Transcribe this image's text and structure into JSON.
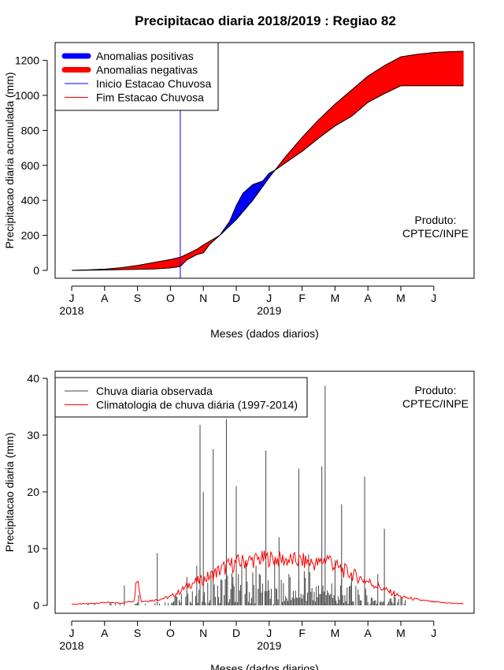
{
  "page_title": "Precipitacao diaria 2018/2019 : Regiao 82",
  "chart_data": [
    {
      "type": "area",
      "xlabel": "Meses (dados diarios)",
      "ylabel": "Precipitacao diaria acumulada (mm)",
      "ylim": [
        0,
        1250
      ],
      "yticks": [
        0,
        200,
        400,
        600,
        800,
        1000,
        1200
      ],
      "x_months": [
        "J",
        "A",
        "S",
        "O",
        "N",
        "D",
        "J",
        "F",
        "M",
        "A",
        "M",
        "J"
      ],
      "x_years": [
        {
          "label": "2018",
          "at_month": 0
        },
        {
          "label": "2019",
          "at_month": 6
        }
      ],
      "grid": false,
      "legend_position": "top-left",
      "legend": [
        {
          "label": "Anomalias positivas",
          "color": "#0000ff",
          "style": "thick"
        },
        {
          "label": "Anomalias negativas",
          "color": "#ff0000",
          "style": "thick"
        },
        {
          "label": "Inicio Estacao Chuvosa",
          "color": "#0000ff",
          "style": "thin"
        },
        {
          "label": "Fim Estacao Chuvosa",
          "color": "#ff0000",
          "style": "thin"
        }
      ],
      "annotation": [
        "Produto:",
        "CPTEC/INPE"
      ],
      "rainy_season_start_month": 3.3,
      "observed_cumulative": [
        [
          0,
          0
        ],
        [
          0.5,
          1
        ],
        [
          1,
          2
        ],
        [
          1.5,
          4
        ],
        [
          2,
          6
        ],
        [
          2.5,
          8
        ],
        [
          3,
          14
        ],
        [
          3.3,
          22
        ],
        [
          3.5,
          60
        ],
        [
          3.8,
          90
        ],
        [
          4,
          100
        ],
        [
          4.2,
          150
        ],
        [
          4.5,
          200
        ],
        [
          4.8,
          280
        ],
        [
          5,
          370
        ],
        [
          5.2,
          440
        ],
        [
          5.5,
          490
        ],
        [
          5.8,
          510
        ],
        [
          6,
          555
        ],
        [
          6.2,
          575
        ],
        [
          6.5,
          615
        ],
        [
          7,
          680
        ],
        [
          7.5,
          755
        ],
        [
          8,
          825
        ],
        [
          8.5,
          880
        ],
        [
          9,
          960
        ],
        [
          9.5,
          1010
        ],
        [
          10,
          1055
        ],
        [
          10.5,
          1055
        ],
        [
          11,
          1055
        ],
        [
          11.5,
          1055
        ],
        [
          11.9,
          1055
        ]
      ],
      "climatology_cumulative": [
        [
          0,
          0
        ],
        [
          0.5,
          3
        ],
        [
          1,
          7
        ],
        [
          1.5,
          15
        ],
        [
          2,
          28
        ],
        [
          2.5,
          45
        ],
        [
          3,
          62
        ],
        [
          3.3,
          75
        ],
        [
          3.5,
          92
        ],
        [
          3.8,
          120
        ],
        [
          4,
          145
        ],
        [
          4.5,
          200
        ],
        [
          5,
          290
        ],
        [
          5.5,
          400
        ],
        [
          6,
          530
        ],
        [
          6.5,
          650
        ],
        [
          7,
          760
        ],
        [
          7.5,
          860
        ],
        [
          8,
          950
        ],
        [
          8.5,
          1030
        ],
        [
          9,
          1110
        ],
        [
          9.5,
          1170
        ],
        [
          10,
          1220
        ],
        [
          10.5,
          1235
        ],
        [
          11,
          1245
        ],
        [
          11.5,
          1250
        ],
        [
          11.9,
          1252
        ]
      ]
    },
    {
      "type": "bar",
      "xlabel": "Meses (dados diarios)",
      "ylabel": "Precipitacao diaria (mm)",
      "ylim": [
        0,
        40
      ],
      "yticks": [
        0,
        10,
        20,
        30,
        40
      ],
      "x_months": [
        "J",
        "A",
        "S",
        "O",
        "N",
        "D",
        "J",
        "F",
        "M",
        "A",
        "M",
        "J"
      ],
      "x_years": [
        {
          "label": "2018",
          "at_month": 0
        },
        {
          "label": "2019",
          "at_month": 6
        }
      ],
      "grid": false,
      "legend_position": "top-left",
      "legend": [
        {
          "label": "Chuva diaria observada",
          "color": "#444444",
          "style": "thin"
        },
        {
          "label": "Climatologia de chuva diária (1997-2014)",
          "color": "#ff0000",
          "style": "thin"
        }
      ],
      "annotation": [
        "Produto:",
        "CPTEC/INPE"
      ],
      "observed_daily_peaks": [
        [
          1.6,
          3.5
        ],
        [
          2.6,
          9.2
        ],
        [
          3.2,
          1.5
        ],
        [
          3.5,
          5
        ],
        [
          3.8,
          7
        ],
        [
          3.9,
          31.8
        ],
        [
          4.0,
          20
        ],
        [
          4.3,
          27.5
        ],
        [
          4.7,
          32.8
        ],
        [
          4.9,
          5
        ],
        [
          5.0,
          21
        ],
        [
          5.3,
          8
        ],
        [
          5.6,
          7
        ],
        [
          5.9,
          27.3
        ],
        [
          6.3,
          12
        ],
        [
          6.6,
          5.5
        ],
        [
          6.9,
          24.1
        ],
        [
          7.2,
          9
        ],
        [
          7.5,
          3.5
        ],
        [
          7.6,
          24.5
        ],
        [
          7.7,
          38.7
        ],
        [
          8.0,
          8
        ],
        [
          8.2,
          17.8
        ],
        [
          8.5,
          5
        ],
        [
          8.9,
          22.7
        ],
        [
          9.3,
          5.5
        ],
        [
          9.5,
          13.5
        ],
        [
          9.8,
          2.5
        ],
        [
          10.0,
          1.5
        ]
      ],
      "climatology_daily": [
        [
          0,
          0.2
        ],
        [
          0.5,
          0.3
        ],
        [
          1,
          0.5
        ],
        [
          1.5,
          0.4
        ],
        [
          1.9,
          0.8
        ],
        [
          2.0,
          6.1
        ],
        [
          2.1,
          0.7
        ],
        [
          2.5,
          0.9
        ],
        [
          3,
          1.5
        ],
        [
          3.3,
          2.5
        ],
        [
          3.6,
          3.8
        ],
        [
          4,
          4.5
        ],
        [
          4.3,
          5.5
        ],
        [
          4.6,
          6.5
        ],
        [
          5,
          7.5
        ],
        [
          5.5,
          8.0
        ],
        [
          6,
          8.3
        ],
        [
          6.5,
          8.0
        ],
        [
          7,
          7.8
        ],
        [
          7.5,
          7.3
        ],
        [
          7.8,
          8.5
        ],
        [
          8,
          6.8
        ],
        [
          8.5,
          5.5
        ],
        [
          9,
          4.2
        ],
        [
          9.5,
          2.8
        ],
        [
          10,
          1.5
        ],
        [
          10.5,
          1.0
        ],
        [
          11,
          0.6
        ],
        [
          11.5,
          0.4
        ],
        [
          11.9,
          0.3
        ]
      ]
    }
  ]
}
